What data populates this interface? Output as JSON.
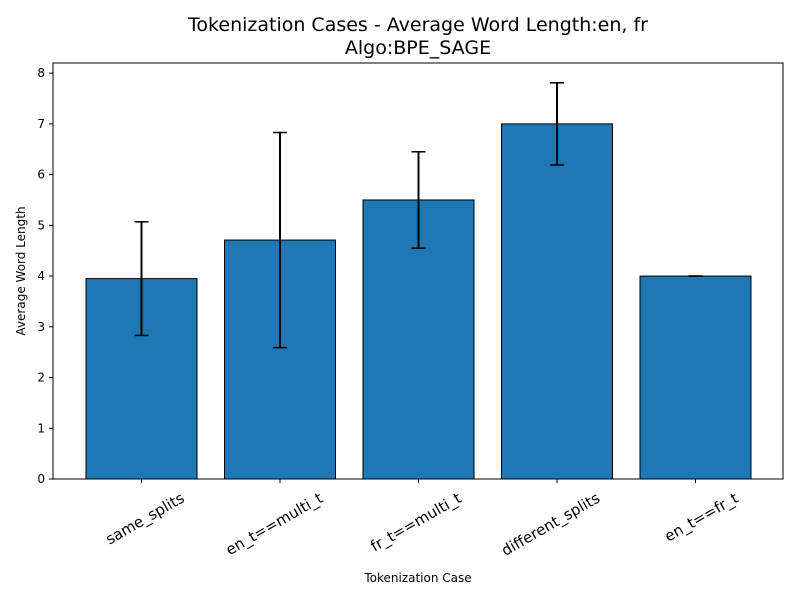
{
  "chart_data": {
    "type": "bar",
    "title": "Tokenization Cases - Average Word Length:en, fr",
    "subtitle": "Algo:BPE_SAGE",
    "xlabel": "Tokenization Case",
    "ylabel": "Average Word Length",
    "categories": [
      "same_splits",
      "en_t==multi_t",
      "fr_t==multi_t",
      "different_splits",
      "en_t==fr_t"
    ],
    "values": [
      3.95,
      4.71,
      5.5,
      7.0,
      4.0
    ],
    "errors": [
      1.12,
      2.12,
      0.95,
      0.81,
      0.0
    ],
    "ylim": [
      0,
      8.2
    ],
    "yticks": [
      "0",
      "1",
      "2",
      "3",
      "4",
      "5",
      "6",
      "7",
      "8"
    ],
    "grid": false,
    "legend": "none",
    "colors": {
      "bar": "#1f77b4",
      "edge": "#000000",
      "error": "#000000"
    }
  }
}
